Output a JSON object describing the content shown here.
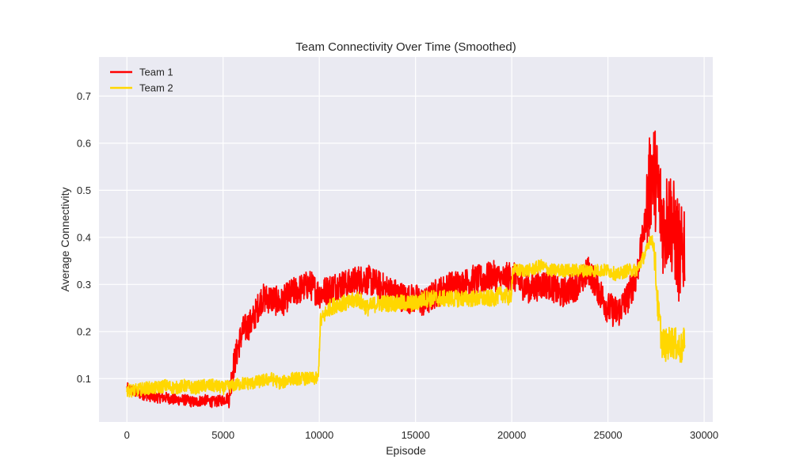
{
  "chart_data": {
    "type": "line",
    "title": "Team Connectivity Over Time (Smoothed)",
    "xlabel": "Episode",
    "ylabel": "Average Connectivity",
    "xlim": [
      -1450,
      30450
    ],
    "ylim": [
      0.008,
      0.783
    ],
    "xticks": [
      0,
      5000,
      10000,
      15000,
      20000,
      25000,
      30000
    ],
    "yticks": [
      0.1,
      0.2,
      0.3,
      0.4,
      0.5,
      0.6,
      0.7
    ],
    "grid": true,
    "legend_position": "top-left",
    "series": [
      {
        "name": "Team 1",
        "color": "#ff0000",
        "x": [
          0,
          500,
          1000,
          1500,
          2000,
          2500,
          3000,
          3500,
          4000,
          4500,
          5000,
          5300,
          5500,
          5800,
          6000,
          6500,
          7000,
          7500,
          8000,
          8500,
          9000,
          9500,
          10000,
          10500,
          11000,
          11500,
          12000,
          12500,
          13000,
          13500,
          14000,
          14500,
          15000,
          15500,
          16000,
          16500,
          17000,
          17500,
          18000,
          18500,
          19000,
          19500,
          20000,
          20500,
          21000,
          21500,
          22000,
          22500,
          23000,
          23500,
          24000,
          24500,
          25000,
          25500,
          26000,
          26500,
          27000,
          27300,
          27600,
          27900,
          28200,
          28500,
          28800,
          29000
        ],
        "values": [
          0.08,
          0.07,
          0.065,
          0.06,
          0.06,
          0.055,
          0.055,
          0.05,
          0.055,
          0.05,
          0.055,
          0.06,
          0.12,
          0.17,
          0.2,
          0.22,
          0.27,
          0.27,
          0.26,
          0.28,
          0.29,
          0.3,
          0.28,
          0.29,
          0.3,
          0.3,
          0.31,
          0.31,
          0.3,
          0.29,
          0.28,
          0.27,
          0.27,
          0.26,
          0.28,
          0.29,
          0.3,
          0.3,
          0.31,
          0.31,
          0.32,
          0.31,
          0.32,
          0.3,
          0.29,
          0.3,
          0.3,
          0.28,
          0.29,
          0.3,
          0.33,
          0.29,
          0.25,
          0.24,
          0.27,
          0.32,
          0.45,
          0.55,
          0.5,
          0.42,
          0.45,
          0.4,
          0.35,
          0.4
        ]
      },
      {
        "name": "Team 2",
        "color": "#ffd700",
        "x": [
          0,
          500,
          1000,
          1500,
          2000,
          2500,
          3000,
          3500,
          4000,
          4500,
          5000,
          5500,
          6000,
          6500,
          7000,
          7500,
          8000,
          8500,
          9000,
          9500,
          9950,
          10050,
          10500,
          11000,
          11500,
          12000,
          12500,
          13000,
          13500,
          14000,
          14500,
          15000,
          15500,
          16000,
          16500,
          17000,
          17500,
          18000,
          18500,
          19000,
          19500,
          19950,
          20050,
          20500,
          21000,
          21500,
          22000,
          22500,
          23000,
          23500,
          24000,
          24500,
          25000,
          25500,
          26000,
          26500,
          27000,
          27200,
          27400,
          27600,
          27800,
          28000,
          28300,
          28600,
          28900,
          29000
        ],
        "values": [
          0.075,
          0.075,
          0.08,
          0.08,
          0.085,
          0.08,
          0.085,
          0.08,
          0.085,
          0.085,
          0.08,
          0.085,
          0.09,
          0.09,
          0.095,
          0.1,
          0.09,
          0.1,
          0.1,
          0.1,
          0.1,
          0.22,
          0.25,
          0.26,
          0.26,
          0.27,
          0.25,
          0.26,
          0.26,
          0.26,
          0.26,
          0.26,
          0.27,
          0.27,
          0.27,
          0.27,
          0.27,
          0.27,
          0.27,
          0.27,
          0.28,
          0.27,
          0.33,
          0.33,
          0.33,
          0.34,
          0.33,
          0.33,
          0.33,
          0.33,
          0.33,
          0.33,
          0.33,
          0.32,
          0.33,
          0.33,
          0.37,
          0.4,
          0.38,
          0.25,
          0.18,
          0.17,
          0.18,
          0.17,
          0.16,
          0.2
        ]
      }
    ]
  }
}
